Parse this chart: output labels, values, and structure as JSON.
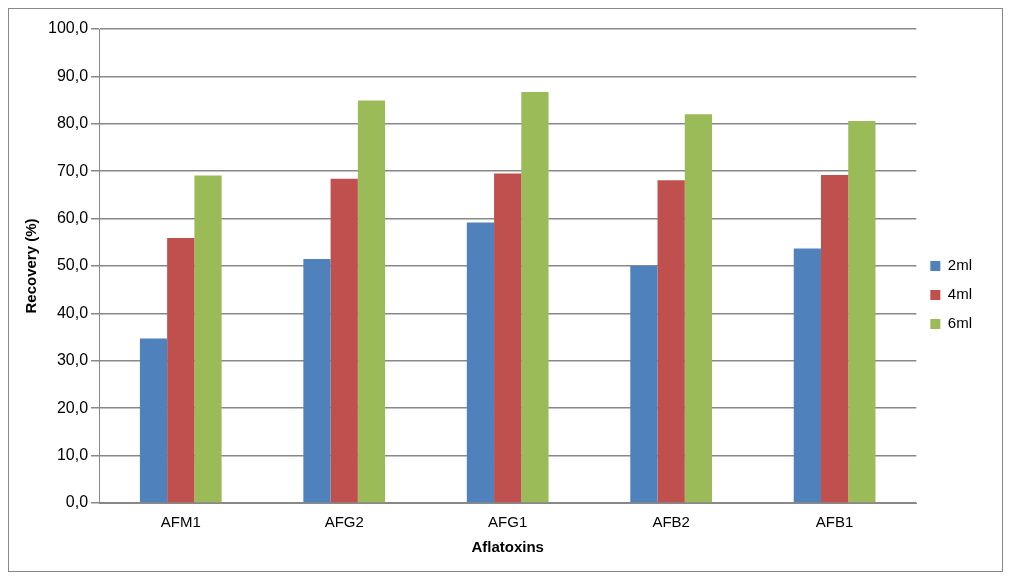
{
  "chart_data": {
    "type": "bar",
    "xlabel": "Aflatoxins",
    "ylabel": "Recovery (%)",
    "categories": [
      "AFM1",
      "AFG2",
      "AFG1",
      "AFB2",
      "AFB1"
    ],
    "series": [
      {
        "name": "2ml",
        "color": "#4f81bd",
        "values": [
          34.7,
          51.5,
          59.2,
          50.0,
          53.7
        ]
      },
      {
        "name": "4ml",
        "color": "#c0504d",
        "values": [
          55.9,
          68.4,
          69.5,
          68.1,
          69.2
        ]
      },
      {
        "name": "6ml",
        "color": "#9bbb59",
        "values": [
          69.1,
          84.9,
          86.7,
          82.0,
          80.6
        ]
      }
    ],
    "ylim": [
      0,
      100
    ],
    "yticks": [
      {
        "value": 0,
        "label": "0,0"
      },
      {
        "value": 10,
        "label": "10,0"
      },
      {
        "value": 20,
        "label": "20,0"
      },
      {
        "value": 30,
        "label": "30,0"
      },
      {
        "value": 40,
        "label": "40,0"
      },
      {
        "value": 50,
        "label": "50,0"
      },
      {
        "value": 60,
        "label": "60,0"
      },
      {
        "value": 70,
        "label": "70,0"
      },
      {
        "value": 80,
        "label": "80,0"
      },
      {
        "value": 90,
        "label": "90,0"
      },
      {
        "value": 100,
        "label": "100,0"
      }
    ],
    "grid": "y",
    "legend": "right"
  }
}
